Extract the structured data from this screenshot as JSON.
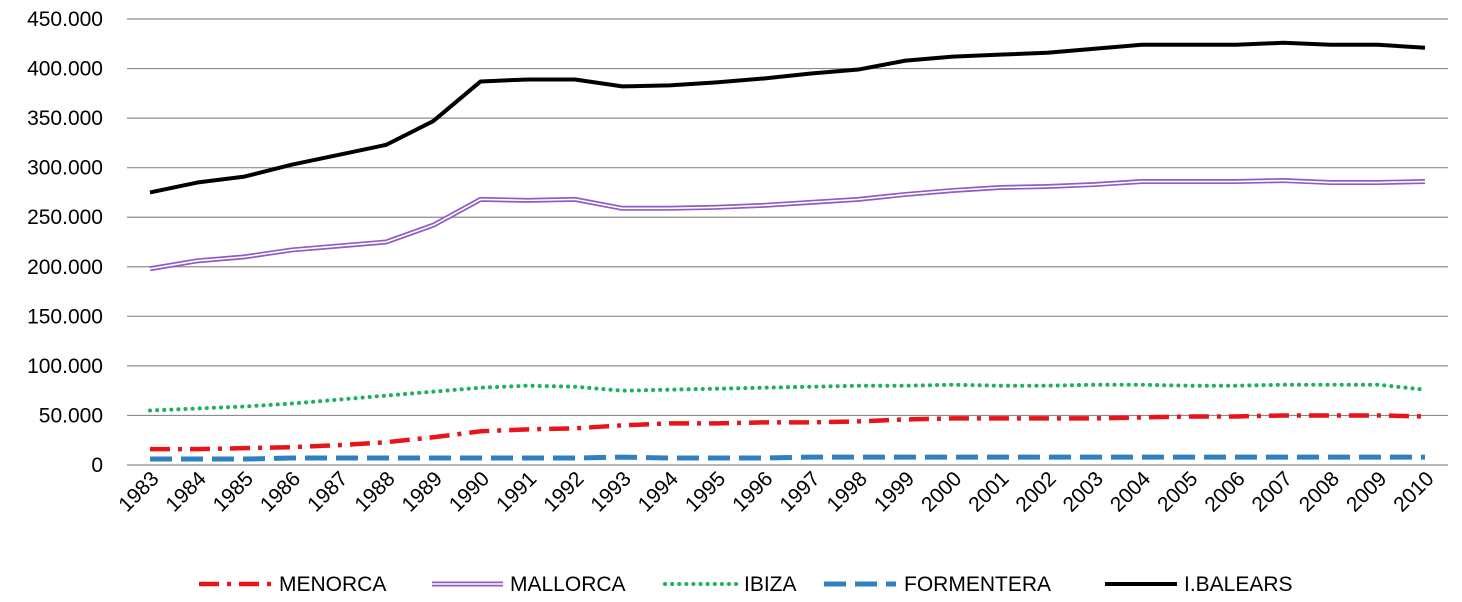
{
  "chart_data": {
    "type": "line",
    "title": "",
    "xlabel": "",
    "ylabel": "",
    "categories": [
      "1983",
      "1984",
      "1985",
      "1986",
      "1987",
      "1988",
      "1989",
      "1990",
      "1991",
      "1992",
      "1993",
      "1994",
      "1995",
      "1996",
      "1997",
      "1998",
      "1999",
      "2000",
      "2001",
      "2002",
      "2003",
      "2004",
      "2005",
      "2006",
      "2007",
      "2008",
      "2009",
      "2010"
    ],
    "ylim": [
      0,
      450000
    ],
    "yticks": [
      0,
      50000,
      100000,
      150000,
      200000,
      250000,
      300000,
      350000,
      400000,
      450000
    ],
    "ytick_labels": [
      "0",
      "50.000",
      "100.000",
      "150.000",
      "200.000",
      "250.000",
      "300.000",
      "350.000",
      "400.000",
      "450.000"
    ],
    "grid": true,
    "legend_position": "bottom",
    "series": [
      {
        "name": "MENORCA",
        "color": "#e8141b",
        "style": "dash-dot",
        "values": [
          16000,
          16000,
          17000,
          18000,
          20000,
          23000,
          28000,
          34000,
          36000,
          37000,
          40000,
          42000,
          42000,
          43000,
          43000,
          44000,
          46000,
          47000,
          47000,
          47000,
          47000,
          48000,
          49000,
          49000,
          50000,
          50000,
          50000,
          49000
        ]
      },
      {
        "name": "MALLORCA",
        "color": "#8e5cc2",
        "style": "double",
        "values": [
          198000,
          206000,
          210000,
          217000,
          221000,
          225000,
          242000,
          268000,
          267000,
          268000,
          259000,
          259000,
          260000,
          262000,
          265000,
          268000,
          273000,
          277000,
          280000,
          281000,
          283000,
          286000,
          286000,
          286000,
          287000,
          285000,
          285000,
          286000
        ]
      },
      {
        "name": "IBIZA",
        "color": "#1eb062",
        "style": "dotted",
        "values": [
          55000,
          57000,
          59000,
          62000,
          66000,
          70000,
          74000,
          78000,
          80000,
          79000,
          75000,
          76000,
          77000,
          78000,
          79000,
          80000,
          80000,
          81000,
          80000,
          80000,
          81000,
          81000,
          80000,
          80000,
          81000,
          81000,
          81000,
          76000
        ]
      },
      {
        "name": "FORMENTERA",
        "color": "#2f7fc1",
        "style": "dashed",
        "values": [
          6000,
          6000,
          6000,
          7000,
          7000,
          7000,
          7000,
          7000,
          7000,
          7000,
          8000,
          7000,
          7000,
          7000,
          8000,
          8000,
          8000,
          8000,
          8000,
          8000,
          8000,
          8000,
          8000,
          8000,
          8000,
          8000,
          8000,
          8000
        ]
      },
      {
        "name": "I.BALEARS",
        "color": "#000000",
        "style": "solid",
        "values": [
          275000,
          285000,
          291000,
          303000,
          313000,
          323000,
          347000,
          387000,
          389000,
          389000,
          382000,
          383000,
          386000,
          390000,
          395000,
          399000,
          408000,
          412000,
          414000,
          416000,
          420000,
          424000,
          424000,
          424000,
          426000,
          424000,
          424000,
          421000
        ]
      }
    ]
  }
}
